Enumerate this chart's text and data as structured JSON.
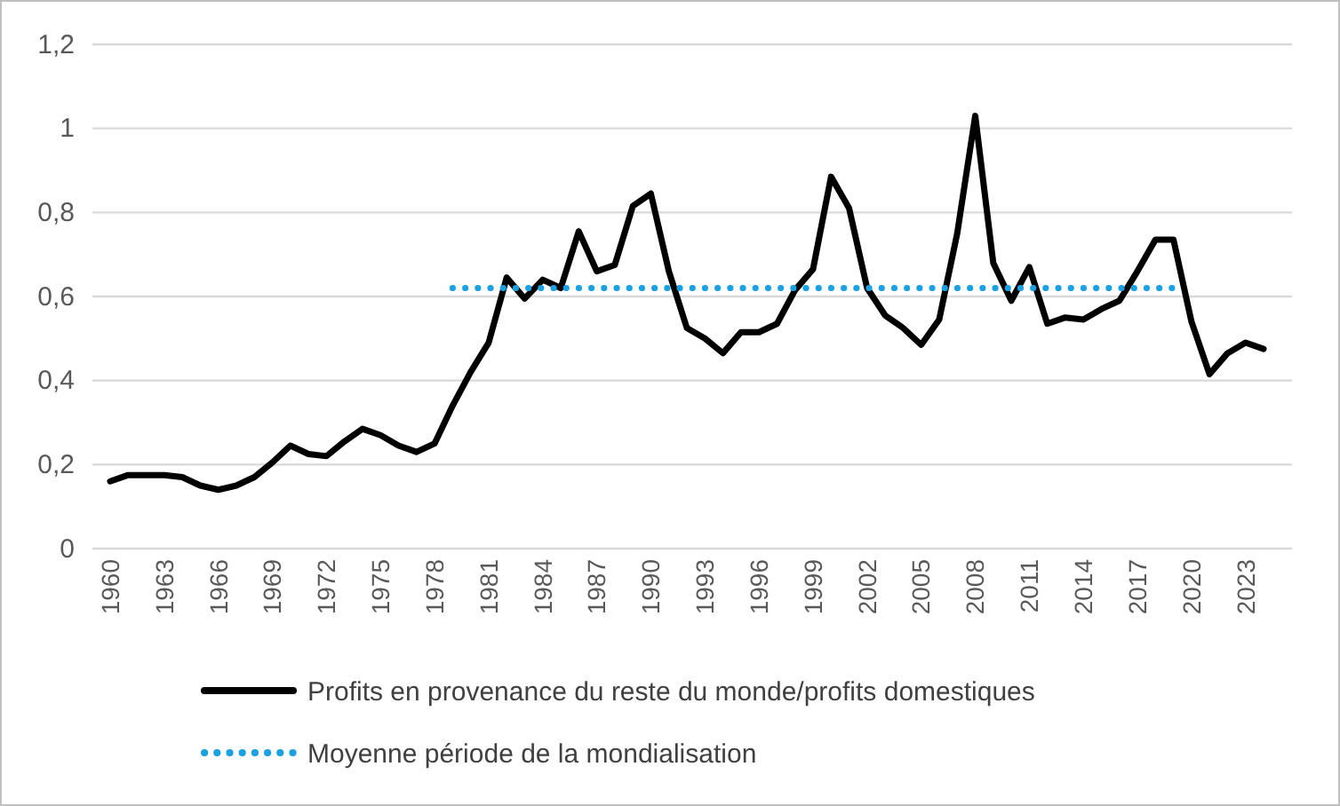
{
  "chart_data": {
    "type": "line",
    "categories": [
      "1960",
      null,
      null,
      "1963",
      null,
      null,
      "1966",
      null,
      null,
      "1969",
      null,
      null,
      "1972",
      null,
      null,
      "1975",
      null,
      null,
      "1978",
      null,
      null,
      "1981",
      null,
      null,
      "1984",
      null,
      null,
      "1987",
      null,
      null,
      "1990",
      null,
      null,
      "1993",
      null,
      null,
      "1996",
      null,
      null,
      "1999",
      null,
      null,
      "2002",
      null,
      null,
      "2005",
      null,
      null,
      "2008",
      null,
      null,
      "2011",
      null,
      null,
      "2014",
      null,
      null,
      "2017",
      null,
      null,
      "2020",
      null,
      null,
      "2023",
      null
    ],
    "series": [
      {
        "name": "Profits en provenance du reste du monde/profits domestiques",
        "color": "#000000",
        "line_style": "solid",
        "values": [
          0.16,
          0.175,
          0.175,
          0.175,
          0.17,
          0.15,
          0.14,
          0.15,
          0.17,
          0.205,
          0.245,
          0.225,
          0.22,
          0.255,
          0.285,
          0.27,
          0.245,
          0.23,
          0.25,
          0.34,
          0.42,
          0.49,
          0.645,
          0.595,
          0.64,
          0.62,
          0.755,
          0.66,
          0.675,
          0.815,
          0.845,
          0.66,
          0.525,
          0.5,
          0.465,
          0.515,
          0.515,
          0.535,
          0.615,
          0.665,
          0.885,
          0.81,
          0.62,
          0.555,
          0.525,
          0.485,
          0.545,
          0.75,
          1.03,
          0.68,
          0.59,
          0.67,
          0.535,
          0.55,
          0.545,
          0.57,
          0.59,
          0.66,
          0.735,
          0.735,
          0.54,
          0.415,
          0.465,
          0.49,
          0.475
        ]
      },
      {
        "name": "Moyenne période de la mondialisation",
        "color": "#1ba1e2",
        "line_style": "dotted",
        "values": [
          null,
          null,
          null,
          null,
          null,
          null,
          null,
          null,
          null,
          null,
          null,
          null,
          null,
          null,
          null,
          null,
          null,
          null,
          null,
          0.62,
          0.62,
          0.62,
          0.62,
          0.62,
          0.62,
          0.62,
          0.62,
          0.62,
          0.62,
          0.62,
          0.62,
          0.62,
          0.62,
          0.62,
          0.62,
          0.62,
          0.62,
          0.62,
          0.62,
          0.62,
          0.62,
          0.62,
          0.62,
          0.62,
          0.62,
          0.62,
          0.62,
          0.62,
          0.62,
          0.62,
          0.62,
          0.62,
          0.62,
          0.62,
          0.62,
          0.62,
          0.62,
          0.62,
          0.62,
          0.62,
          null,
          null,
          null,
          null,
          null
        ]
      }
    ],
    "ylim": [
      0,
      1.2
    ],
    "yticks": [
      0,
      {
        "value": 0.2,
        "label": "0,2"
      },
      {
        "value": 0.4,
        "label": "0,4"
      },
      {
        "value": 0.6,
        "label": "0,6"
      },
      {
        "value": 0.8,
        "label": "0,8"
      },
      1,
      {
        "value": 1.2,
        "label": "1,2"
      }
    ],
    "grid": "y",
    "legend": "bottom",
    "marker": "none"
  }
}
